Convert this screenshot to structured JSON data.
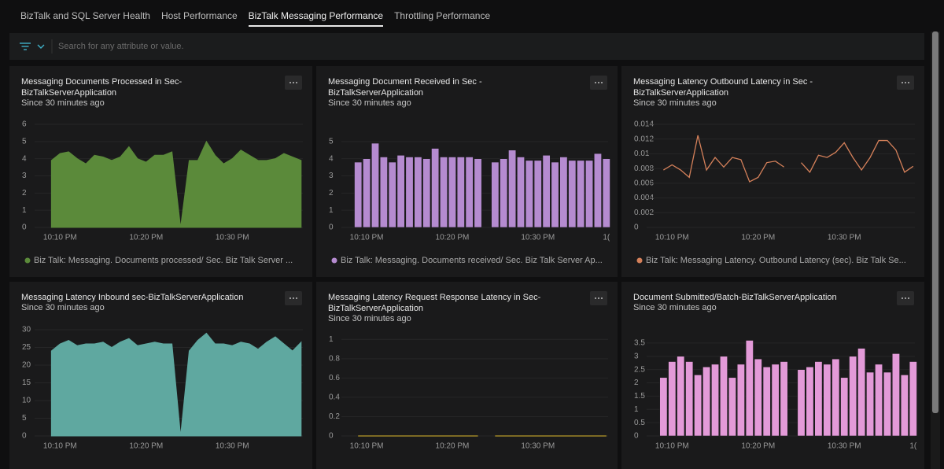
{
  "tabs": [
    "BizTalk and SQL Server Health",
    "Host Performance",
    "BizTalk Messaging Performance",
    "Throttling Performance"
  ],
  "active_tab": 2,
  "search_placeholder": "Search for any attribute or value.",
  "panels": [
    {
      "title": [
        "Messaging Documents Processed in Sec-",
        "BizTalkServerApplication"
      ],
      "subtitle": "Since 30 minutes ago",
      "chart": {
        "type": "area",
        "xlim": [
          6.5,
          38.2
        ],
        "ylim": [
          0,
          6
        ],
        "yticks": [
          0,
          1,
          2,
          3,
          4,
          5,
          6
        ],
        "grid": true,
        "xticks": [
          {
            "value": 10,
            "label": "10:10 PM"
          },
          {
            "value": 20,
            "label": "10:20 PM"
          },
          {
            "value": 30,
            "label": "10:30 PM"
          }
        ],
        "x": [
          9,
          10,
          11,
          12,
          13,
          14,
          15,
          16,
          17,
          18,
          19,
          20,
          21,
          22,
          23,
          24,
          25,
          26,
          27,
          28,
          29,
          30,
          31,
          32,
          33,
          34,
          35,
          36,
          37,
          38
        ],
        "series": [
          {
            "name": "Biz Talk: Messaging. Documents processed/ Sec. Biz Talk Server ...",
            "color": "#5b8a3a",
            "values": [
              3.9,
              4.3,
              4.4,
              4.0,
              3.7,
              4.2,
              4.1,
              3.9,
              4.1,
              4.7,
              4.0,
              3.8,
              4.2,
              4.2,
              4.4,
              0,
              3.9,
              3.9,
              5.0,
              4.2,
              3.7,
              4.0,
              4.5,
              4.2,
              3.9,
              3.9,
              4.0,
              4.3,
              4.1,
              3.9
            ]
          }
        ]
      }
    },
    {
      "title": [
        "Messaging Document Received in Sec -",
        "BizTalkServerApplication"
      ],
      "subtitle": "Since 30 minutes ago",
      "chart": {
        "type": "bar",
        "xlim": [
          6.5,
          38.2
        ],
        "ylim": [
          0,
          6
        ],
        "yticks": [
          0,
          1,
          2,
          3,
          4,
          5
        ],
        "grid": true,
        "xticks": [
          {
            "value": 10,
            "label": "10:10 PM"
          },
          {
            "value": 20,
            "label": "10:20 PM"
          },
          {
            "value": 30,
            "label": "10:30 PM"
          },
          {
            "value": 38,
            "label": "1("
          }
        ],
        "x": [
          9,
          10,
          11,
          12,
          13,
          14,
          15,
          16,
          17,
          18,
          19,
          20,
          21,
          22,
          23,
          24,
          25,
          26,
          27,
          28,
          29,
          30,
          31,
          32,
          33,
          34,
          35,
          36,
          37,
          38
        ],
        "series": [
          {
            "name": "Biz Talk: Messaging. Documents received/ Sec. Biz Talk Server Ap...",
            "color": "#b58bd0",
            "values": [
              3.8,
              4.0,
              4.9,
              4.1,
              3.8,
              4.2,
              4.1,
              4.1,
              4.0,
              4.6,
              4.1,
              4.1,
              4.1,
              4.1,
              4.0,
              null,
              3.8,
              4.0,
              4.5,
              4.1,
              3.9,
              3.9,
              4.2,
              3.8,
              4.1,
              3.9,
              3.9,
              3.9,
              4.3,
              4.0
            ]
          }
        ]
      }
    },
    {
      "title": [
        "Messaging Latency Outbound Latency in Sec -",
        "BizTalkServerApplication"
      ],
      "subtitle": "Since 30 minutes ago",
      "chart": {
        "type": "line",
        "xlim": [
          6.5,
          38.2
        ],
        "ylim": [
          0,
          0.014
        ],
        "yticks": [
          0,
          0.002,
          0.004,
          0.006,
          0.008,
          0.01,
          0.012,
          0.014
        ],
        "grid": true,
        "xticks": [
          {
            "value": 10,
            "label": "10:10 PM"
          },
          {
            "value": 20,
            "label": "10:20 PM"
          },
          {
            "value": 30,
            "label": "10:30 PM"
          }
        ],
        "x": [
          9,
          10,
          11,
          12,
          13,
          14,
          15,
          16,
          17,
          18,
          19,
          20,
          21,
          22,
          23,
          24,
          25,
          26,
          27,
          28,
          29,
          30,
          31,
          32,
          33,
          34,
          35,
          36,
          37,
          38
        ],
        "series": [
          {
            "name": "Biz Talk: Messaging Latency. Outbound Latency (sec). Biz Talk Se...",
            "color": "#d4805a",
            "values": [
              0.0078,
              0.0085,
              0.0078,
              0.0068,
              0.0125,
              0.0078,
              0.0095,
              0.0082,
              0.0095,
              0.0092,
              0.0062,
              0.0068,
              0.0088,
              0.009,
              0.0082,
              null,
              0.0088,
              0.0075,
              0.0098,
              0.0095,
              0.0102,
              0.0115,
              0.0095,
              0.0078,
              0.0095,
              0.0118,
              0.0118,
              0.0105,
              0.0075,
              0.0083
            ]
          }
        ]
      }
    },
    {
      "title": [
        "Messaging Latency Inbound sec-BizTalkServerApplication"
      ],
      "subtitle": "Since 30 minutes ago",
      "chart": {
        "type": "area",
        "xlim": [
          6.5,
          38.2
        ],
        "ylim": [
          0,
          30
        ],
        "yticks": [
          0,
          5,
          10,
          15,
          20,
          25,
          30
        ],
        "grid": true,
        "xticks": [
          {
            "value": 10,
            "label": "10:10 PM"
          },
          {
            "value": 20,
            "label": "10:20 PM"
          },
          {
            "value": 30,
            "label": "10:30 PM"
          }
        ],
        "x": [
          9,
          10,
          11,
          12,
          13,
          14,
          15,
          16,
          17,
          18,
          19,
          20,
          21,
          22,
          23,
          24,
          25,
          26,
          27,
          28,
          29,
          30,
          31,
          32,
          33,
          34,
          35,
          36,
          37,
          38
        ],
        "series": [
          {
            "color": "#5fa8a0",
            "values": [
              24,
              26,
              27,
              25.5,
              26,
              26,
              26.5,
              25,
              26.5,
              27.5,
              25.5,
              26,
              26.5,
              26,
              26,
              0,
              24,
              27,
              29,
              26,
              26,
              25.5,
              26.5,
              26,
              24.5,
              26.5,
              28,
              26,
              24,
              26.5
            ]
          }
        ]
      }
    },
    {
      "title": [
        "Messaging Latency Request Response Latency in Sec-",
        "BizTalkServerApplication"
      ],
      "subtitle": "Since 30 minutes ago",
      "chart": {
        "type": "line",
        "xlim": [
          6.5,
          38.2
        ],
        "ylim": [
          0,
          1.1
        ],
        "yticks": [
          0,
          0.2,
          0.4,
          0.6,
          0.8,
          1
        ],
        "grid": true,
        "xticks": [
          {
            "value": 10,
            "label": "10:10 PM"
          },
          {
            "value": 20,
            "label": "10:20 PM"
          },
          {
            "value": 30,
            "label": "10:30 PM"
          }
        ],
        "x": [
          9,
          10,
          11,
          12,
          13,
          14,
          15,
          16,
          17,
          18,
          19,
          20,
          21,
          22,
          23,
          24,
          25,
          26,
          27,
          28,
          29,
          30,
          31,
          32,
          33,
          34,
          35,
          36,
          37,
          38
        ],
        "series": [
          {
            "color": "#b89b2a",
            "values": [
              0,
              0,
              0,
              0,
              0,
              0,
              0,
              0,
              0,
              0,
              0,
              0,
              0,
              0,
              0,
              null,
              0,
              0,
              0,
              0,
              0,
              0,
              0,
              0,
              0,
              0,
              0,
              0,
              0,
              0
            ]
          }
        ]
      }
    },
    {
      "title": [
        "Document Submitted/Batch-BizTalkServerApplication"
      ],
      "subtitle": "Since 30 minutes ago",
      "chart": {
        "type": "bar",
        "xlim": [
          6.5,
          38.2
        ],
        "ylim": [
          0,
          4
        ],
        "yticks": [
          0,
          0.5,
          1,
          1.5,
          2,
          2.5,
          3,
          3.5
        ],
        "grid": true,
        "xticks": [
          {
            "value": 10,
            "label": "10:10 PM"
          },
          {
            "value": 20,
            "label": "10:20 PM"
          },
          {
            "value": 30,
            "label": "10:30 PM"
          },
          {
            "value": 38,
            "label": "1("
          }
        ],
        "x": [
          9,
          10,
          11,
          12,
          13,
          14,
          15,
          16,
          17,
          18,
          19,
          20,
          21,
          22,
          23,
          24,
          25,
          26,
          27,
          28,
          29,
          30,
          31,
          32,
          33,
          34,
          35,
          36,
          37,
          38
        ],
        "series": [
          {
            "color": "#e39ad8",
            "values": [
              2.2,
              2.8,
              3.0,
              2.8,
              2.3,
              2.6,
              2.7,
              3.0,
              2.2,
              2.7,
              3.6,
              2.9,
              2.6,
              2.7,
              2.8,
              null,
              2.5,
              2.6,
              2.8,
              2.7,
              2.9,
              2.2,
              3.0,
              3.3,
              2.4,
              2.7,
              2.4,
              3.1,
              2.3,
              2.8
            ]
          }
        ]
      }
    }
  ]
}
